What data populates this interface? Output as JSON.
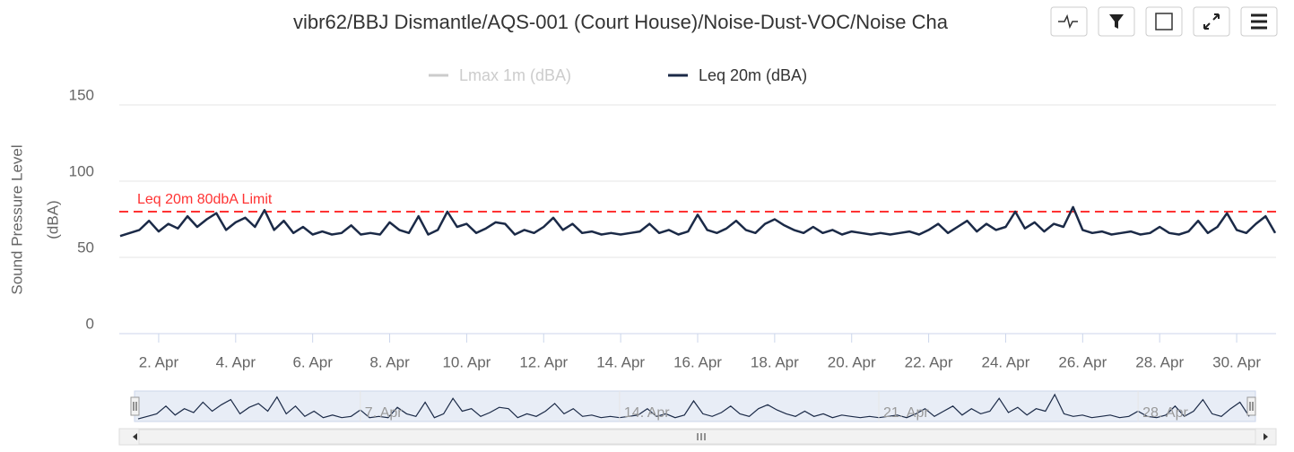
{
  "chart_data": {
    "type": "line",
    "title": "vibr62/BBJ Dismantle/AQS-001 (Court House)/Noise-Dust-VOC/Noise Cha",
    "y_axis_label": [
      "Sound Pressure Level",
      "(dBA)"
    ],
    "x": [
      1,
      1.25,
      1.5,
      1.75,
      2,
      2.25,
      2.5,
      2.75,
      3,
      3.25,
      3.5,
      3.75,
      4,
      4.25,
      4.5,
      4.75,
      5,
      5.25,
      5.5,
      5.75,
      6,
      6.25,
      6.5,
      6.75,
      7,
      7.25,
      7.5,
      7.75,
      8,
      8.25,
      8.5,
      8.75,
      9,
      9.25,
      9.5,
      9.75,
      10,
      10.25,
      10.5,
      10.75,
      11,
      11.25,
      11.5,
      11.75,
      12,
      12.25,
      12.5,
      12.75,
      13,
      13.25,
      13.5,
      13.75,
      14,
      14.25,
      14.5,
      14.75,
      15,
      15.25,
      15.5,
      15.75,
      16,
      16.25,
      16.5,
      16.75,
      17,
      17.25,
      17.5,
      17.75,
      18,
      18.25,
      18.5,
      18.75,
      19,
      19.25,
      19.5,
      19.75,
      20,
      20.25,
      20.5,
      20.75,
      21,
      21.25,
      21.5,
      21.75,
      22,
      22.25,
      22.5,
      22.75,
      23,
      23.25,
      23.5,
      23.75,
      24,
      24.25,
      24.5,
      24.75,
      25,
      25.25,
      25.5,
      25.75,
      26,
      26.25,
      26.5,
      26.75,
      27,
      27.25,
      27.5,
      27.75,
      28,
      28.25,
      28.5,
      28.75,
      29,
      29.25,
      29.5,
      29.75,
      30,
      30.25,
      30.5,
      30.75,
      31
    ],
    "series": [
      {
        "name": "Lmax 1m (dBA)",
        "color": "#cccccc",
        "visible": false
      },
      {
        "name": "Leq 20m (dBA)",
        "color": "#1b2a47",
        "visible": true,
        "values": [
          64,
          66,
          68,
          74,
          67,
          72,
          69,
          77,
          70,
          75,
          79,
          68,
          73,
          76,
          70,
          81,
          68,
          74,
          66,
          70,
          65,
          67,
          65,
          66,
          71,
          65,
          66,
          65,
          73,
          68,
          66,
          77,
          65,
          68,
          80,
          70,
          72,
          66,
          69,
          73,
          72,
          65,
          68,
          66,
          70,
          76,
          68,
          72,
          66,
          67,
          65,
          66,
          65,
          66,
          67,
          72,
          66,
          68,
          65,
          67,
          78,
          68,
          66,
          69,
          74,
          68,
          66,
          72,
          75,
          71,
          68,
          66,
          70,
          66,
          68,
          65,
          67,
          66,
          65,
          66,
          65,
          66,
          67,
          65,
          68,
          72,
          66,
          70,
          74,
          67,
          72,
          68,
          70,
          80,
          69,
          73,
          67,
          72,
          70,
          83,
          68,
          66,
          67,
          65,
          66,
          67,
          65,
          66,
          70,
          66,
          65,
          67,
          74,
          66,
          70,
          79,
          68,
          66,
          72,
          77,
          66
        ]
      }
    ],
    "plot_line": {
      "value": 80,
      "label": "Leq 20m 80dbA Limit",
      "color": "#ff3333"
    },
    "xlim": [
      1,
      31
    ],
    "xticks": [
      {
        "value": 2,
        "label": "2. Apr"
      },
      {
        "value": 4,
        "label": "4. Apr"
      },
      {
        "value": 6,
        "label": "6. Apr"
      },
      {
        "value": 8,
        "label": "8. Apr"
      },
      {
        "value": 10,
        "label": "10. Apr"
      },
      {
        "value": 12,
        "label": "12. Apr"
      },
      {
        "value": 14,
        "label": "14. Apr"
      },
      {
        "value": 16,
        "label": "16. Apr"
      },
      {
        "value": 18,
        "label": "18. Apr"
      },
      {
        "value": 20,
        "label": "20. Apr"
      },
      {
        "value": 22,
        "label": "22. Apr"
      },
      {
        "value": 24,
        "label": "24. Apr"
      },
      {
        "value": 26,
        "label": "26. Apr"
      },
      {
        "value": 28,
        "label": "28. Apr"
      },
      {
        "value": 30,
        "label": "30. Apr"
      }
    ],
    "ylim": [
      0,
      150
    ],
    "yticks": [
      0,
      50,
      100,
      150
    ],
    "grid": true,
    "legend": "top",
    "navigator": {
      "ylim": [
        62,
        85
      ],
      "xticks": [
        {
          "value": 7,
          "label": "7. Apr"
        },
        {
          "value": 14,
          "label": "14. Apr"
        },
        {
          "value": 21,
          "label": "21. Apr"
        },
        {
          "value": 28,
          "label": "28. Apr"
        }
      ]
    }
  }
}
